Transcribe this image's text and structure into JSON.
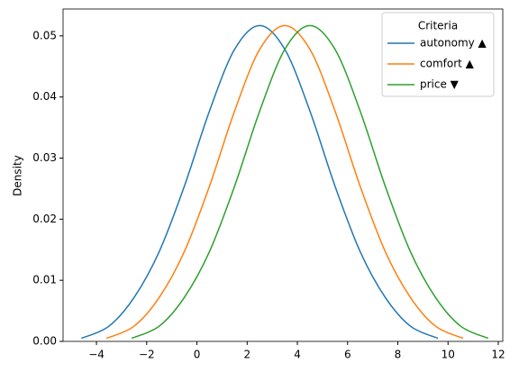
{
  "chart_data": {
    "type": "line",
    "ylabel": "Density",
    "legend_title": "Criteria",
    "legend_position": "upper right",
    "xlim": [
      -5.33,
      12.18
    ],
    "ylim": [
      0,
      0.0544
    ],
    "xticks": [
      {
        "value": -4,
        "label": "−4"
      },
      {
        "value": -2,
        "label": "−2"
      },
      0,
      2,
      4,
      6,
      8,
      10,
      12
    ],
    "yticks": [
      {
        "value": 0,
        "label": "0.00"
      },
      {
        "value": 0.01,
        "label": "0.01"
      },
      {
        "value": 0.02,
        "label": "0.02"
      },
      {
        "value": 0.03,
        "label": "0.03"
      },
      {
        "value": 0.04,
        "label": "0.04"
      },
      {
        "value": 0.05,
        "label": "0.05"
      }
    ],
    "series": [
      {
        "name": "autonomy ▲",
        "color": "#1f77b4",
        "x": [
          -4.6,
          -3.5,
          -2.5,
          -1.5,
          -0.5,
          0.5,
          1.5,
          2.5,
          3.5,
          4.5,
          5.5,
          6.5,
          7.5,
          8.5,
          9.6
        ],
        "values": [
          0.0005,
          0.0025,
          0.0072,
          0.0147,
          0.0254,
          0.0377,
          0.0478,
          0.0517,
          0.0478,
          0.0377,
          0.0254,
          0.0147,
          0.0072,
          0.0025,
          0.0005
        ]
      },
      {
        "name": "comfort ▲",
        "color": "#ff7f0e",
        "x": [
          -3.6,
          -2.5,
          -1.5,
          -0.5,
          0.5,
          1.5,
          2.5,
          3.5,
          4.5,
          5.5,
          6.5,
          7.5,
          8.5,
          9.5,
          10.6
        ],
        "values": [
          0.0005,
          0.0025,
          0.0072,
          0.0147,
          0.0254,
          0.0377,
          0.0478,
          0.0517,
          0.0478,
          0.0377,
          0.0254,
          0.0147,
          0.0072,
          0.0025,
          0.0005
        ]
      },
      {
        "name": "price ▼",
        "color": "#2ca02c",
        "x": [
          -2.6,
          -1.5,
          -0.5,
          0.5,
          1.5,
          2.5,
          3.5,
          4.5,
          5.5,
          6.5,
          7.5,
          8.5,
          9.5,
          10.5,
          11.6
        ],
        "values": [
          0.0005,
          0.0025,
          0.0072,
          0.0147,
          0.0254,
          0.0377,
          0.0478,
          0.0517,
          0.0478,
          0.0377,
          0.0254,
          0.0147,
          0.0072,
          0.0025,
          0.0005
        ]
      }
    ]
  }
}
